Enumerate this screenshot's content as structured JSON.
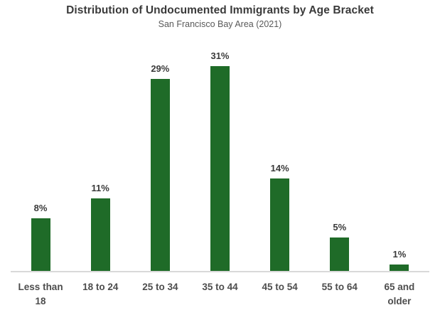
{
  "header": {
    "title": "Distribution of Undocumented Immigrants by Age Bracket",
    "subtitle": "San Francisco Bay Area (2021)"
  },
  "chart_data": {
    "type": "bar",
    "title": "Distribution of Undocumented Immigrants by Age Bracket",
    "subtitle": "San Francisco Bay Area (2021)",
    "categories": [
      "Less than 18",
      "18 to 24",
      "25 to 34",
      "35 to 44",
      "45 to 54",
      "55 to 64",
      "65 and older"
    ],
    "values": [
      8,
      11,
      29,
      31,
      14,
      5,
      1
    ],
    "value_labels": [
      "8%",
      "11%",
      "29%",
      "31%",
      "14%",
      "5%",
      "1%"
    ],
    "xlabel": "",
    "ylabel": "",
    "ylim": [
      0,
      35
    ],
    "grid": false,
    "legend": "none",
    "bar_color": "#1f6b28",
    "axis_line_color": "#d9d9d9"
  }
}
